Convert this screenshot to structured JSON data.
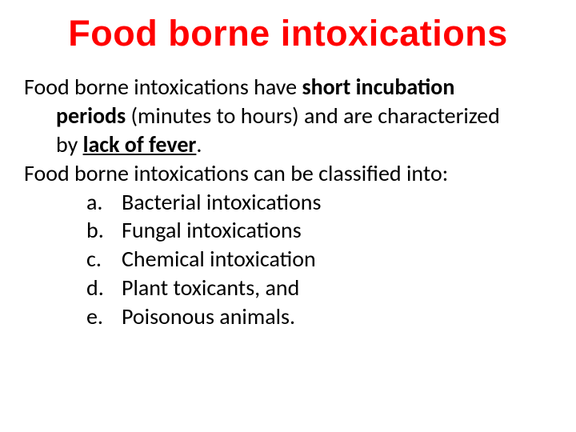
{
  "colors": {
    "title": "#ff0000",
    "text": "#000000",
    "background": "#ffffff"
  },
  "title": "Food borne intoxications",
  "para1_start": "Food borne intoxications have ",
  "para1_bold1": "short incubation",
  "para1_line2a": "periods",
  "para1_line2b": " (minutes to hours) and are characterized",
  "para1_line3a": "by ",
  "para1_bold2": "lack of fever",
  "para1_line3b": ".",
  "para2": "Food borne intoxications can be classified into:",
  "list": [
    {
      "marker": "a.",
      "text": "Bacterial intoxications"
    },
    {
      "marker": "b.",
      "text": "Fungal intoxications"
    },
    {
      "marker": "c.",
      "text": "Chemical intoxication"
    },
    {
      "marker": "d.",
      "text": "Plant toxicants, and"
    },
    {
      "marker": "e.",
      "text": "Poisonous animals."
    }
  ],
  "typography": {
    "title_fontsize": 45,
    "title_fontweight": 700,
    "body_fontsize": 28,
    "line_height": 1.28
  }
}
